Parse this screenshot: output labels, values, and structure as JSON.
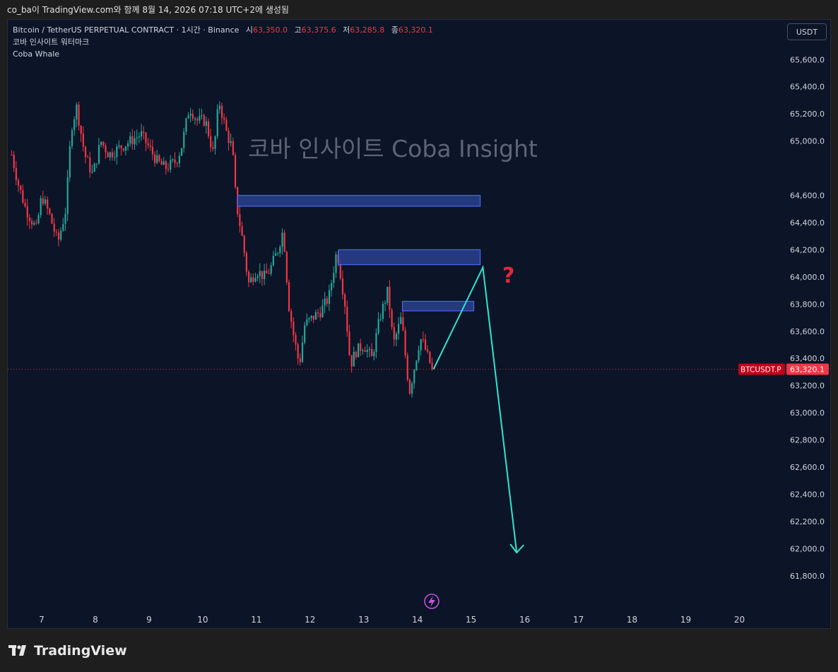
{
  "snapshot": {
    "caption": "co_ba이 TradingView.com와 함께 8월 14, 2026 07:18 UTC+2에 생성됨"
  },
  "legend": {
    "symbol": "Bitcoin / TetherUS PERPETUAL CONTRACT · 1시간 · Binance",
    "open_label": "시",
    "open": "63,350.0",
    "high_label": "고",
    "high": "63,375.6",
    "low_label": "저",
    "low": "63,285.8",
    "close_label": "종",
    "close": "63,320.1",
    "indicator1": "코바 인사이트 워터마크",
    "indicator2": "Coba Whale"
  },
  "currency_button": "USDT",
  "watermark": "코바 인사이트 Coba Insight",
  "price_tag": {
    "symbol": "BTCUSDT.P",
    "price": "63,320.1"
  },
  "footer": {
    "brand": "TradingView"
  },
  "colors": {
    "up": "#26a69a",
    "down": "#f23645",
    "zone_fill": "#2a3f8f",
    "zone_border": "#4668f0",
    "arrow": "#2ee6d0",
    "question": "#e0283e",
    "background": "#0c1427"
  },
  "icons": {
    "lightning": "lightning-icon",
    "question": "question-mark"
  },
  "chart_data": {
    "type": "candlestick",
    "x_unit": "day of month",
    "y_unit": "USDT",
    "ylim": [
      61700,
      65800
    ],
    "xlim": [
      6.4,
      21.0
    ],
    "y_ticks": [
      61800,
      62000,
      62200,
      62400,
      62600,
      62800,
      63000,
      63200,
      63400,
      63600,
      63800,
      64000,
      64200,
      64400,
      64600,
      65000,
      65200,
      65400,
      65600
    ],
    "y_tick_labels": [
      "61,800.0",
      "62,000.0",
      "62,200.0",
      "62,400.0",
      "62,600.0",
      "62,800.0",
      "63,000.0",
      "63,200.0",
      "63,400.0",
      "63,600.0",
      "63,800.0",
      "64,000.0",
      "64,200.0",
      "64,400.0",
      "64,600.0",
      "65,000.0",
      "65,200.0",
      "65,400.0",
      "65,600.0"
    ],
    "x_ticks": [
      7,
      8,
      9,
      10,
      11,
      12,
      13,
      14,
      15,
      16,
      17,
      18,
      19,
      20
    ],
    "x_tick_labels": [
      "7",
      "8",
      "9",
      "10",
      "11",
      "12",
      "13",
      "14",
      "15",
      "16",
      "17",
      "18",
      "19",
      "20"
    ],
    "last_price": 63320.1,
    "price_path": [
      [
        6.44,
        64900
      ],
      [
        6.55,
        64700
      ],
      [
        6.7,
        64500
      ],
      [
        6.9,
        64350
      ],
      [
        7.0,
        64600
      ],
      [
        7.15,
        64450
      ],
      [
        7.3,
        64250
      ],
      [
        7.45,
        64500
      ],
      [
        7.55,
        65100
      ],
      [
        7.65,
        65250
      ],
      [
        7.8,
        64900
      ],
      [
        7.95,
        64750
      ],
      [
        8.1,
        65000
      ],
      [
        8.25,
        64900
      ],
      [
        8.45,
        64950
      ],
      [
        8.65,
        65000
      ],
      [
        8.85,
        65050
      ],
      [
        9.0,
        64950
      ],
      [
        9.15,
        64850
      ],
      [
        9.3,
        64800
      ],
      [
        9.5,
        64850
      ],
      [
        9.6,
        64950
      ],
      [
        9.75,
        65250
      ],
      [
        9.9,
        65150
      ],
      [
        10.05,
        65150
      ],
      [
        10.2,
        64900
      ],
      [
        10.3,
        65300
      ],
      [
        10.45,
        65050
      ],
      [
        10.55,
        64950
      ],
      [
        10.62,
        64550
      ],
      [
        10.75,
        64250
      ],
      [
        10.85,
        63950
      ],
      [
        11.0,
        64050
      ],
      [
        11.15,
        64000
      ],
      [
        11.25,
        64050
      ],
      [
        11.4,
        64200
      ],
      [
        11.5,
        64350
      ],
      [
        11.6,
        63800
      ],
      [
        11.7,
        63550
      ],
      [
        11.8,
        63350
      ],
      [
        11.9,
        63650
      ],
      [
        12.05,
        63700
      ],
      [
        12.2,
        63750
      ],
      [
        12.35,
        63850
      ],
      [
        12.5,
        64200
      ],
      [
        12.65,
        63800
      ],
      [
        12.75,
        63350
      ],
      [
        12.85,
        63450
      ],
      [
        13.0,
        63500
      ],
      [
        13.15,
        63400
      ],
      [
        13.3,
        63700
      ],
      [
        13.45,
        63900
      ],
      [
        13.55,
        63500
      ],
      [
        13.7,
        63700
      ],
      [
        13.78,
        63400
      ],
      [
        13.85,
        63150
      ],
      [
        13.95,
        63350
      ],
      [
        14.05,
        63550
      ],
      [
        14.12,
        63500
      ],
      [
        14.2,
        63400
      ],
      [
        14.28,
        63320
      ]
    ],
    "zones": [
      {
        "x0": 10.65,
        "x1": 15.17,
        "y0": 64520,
        "y1": 64600
      },
      {
        "x0": 12.53,
        "x1": 15.17,
        "y0": 64090,
        "y1": 64200
      },
      {
        "x0": 13.72,
        "x1": 15.05,
        "y0": 63750,
        "y1": 63820
      }
    ],
    "projection": [
      [
        14.3,
        63320
      ],
      [
        15.22,
        64070
      ],
      [
        15.85,
        61970
      ]
    ]
  }
}
